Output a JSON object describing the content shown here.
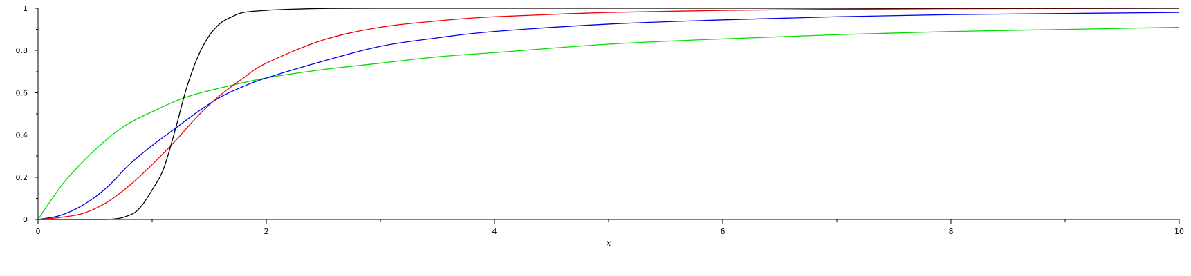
{
  "chart_data": {
    "type": "line",
    "title": "",
    "xlabel": "x",
    "ylabel": "",
    "xlim": [
      0,
      10
    ],
    "ylim": [
      0,
      1
    ],
    "grid": false,
    "x_ticks": [
      0,
      2,
      4,
      6,
      8,
      10
    ],
    "x_ticks_minor": [
      1,
      3,
      5,
      7,
      9
    ],
    "y_ticks": [
      0,
      0.2,
      0.4,
      0.6,
      0.8,
      1
    ],
    "y_tick_labels": [
      "0",
      "0.2",
      "0.4",
      "0.6",
      "0.8",
      "1"
    ],
    "series": [
      {
        "color": "#00dd00",
        "x": [
          0,
          0.1,
          0.25,
          0.5,
          0.75,
          1.0,
          1.25,
          1.5,
          2.0,
          2.5,
          3.0,
          3.5,
          4.0,
          5.0,
          6.0,
          7.0,
          8.0,
          9.0,
          10.0
        ],
        "y": [
          0,
          0.08,
          0.19,
          0.33,
          0.44,
          0.51,
          0.57,
          0.61,
          0.67,
          0.71,
          0.74,
          0.77,
          0.79,
          0.83,
          0.855,
          0.875,
          0.89,
          0.9,
          0.91
        ]
      },
      {
        "color": "#0000ee",
        "x": [
          0,
          0.2,
          0.4,
          0.6,
          0.8,
          1.0,
          1.2,
          1.4,
          1.6,
          1.8,
          2.0,
          2.5,
          3.0,
          3.5,
          4.0,
          5.0,
          6.0,
          7.0,
          8.0,
          9.0,
          10.0
        ],
        "y": [
          0,
          0.02,
          0.07,
          0.15,
          0.26,
          0.35,
          0.43,
          0.51,
          0.58,
          0.63,
          0.67,
          0.75,
          0.82,
          0.86,
          0.89,
          0.925,
          0.945,
          0.96,
          0.97,
          0.975,
          0.98
        ]
      },
      {
        "color": "#ee0000",
        "x": [
          0,
          0.2,
          0.4,
          0.6,
          0.8,
          1.0,
          1.2,
          1.4,
          1.6,
          1.8,
          2.0,
          2.5,
          3.0,
          3.5,
          4.0,
          5.0,
          6.0,
          7.0,
          8.0,
          9.0,
          10.0
        ],
        "y": [
          0,
          0.01,
          0.03,
          0.08,
          0.16,
          0.26,
          0.37,
          0.49,
          0.59,
          0.67,
          0.74,
          0.85,
          0.91,
          0.94,
          0.96,
          0.98,
          0.99,
          0.995,
          0.998,
          0.999,
          1.0
        ]
      },
      {
        "color": "#000000",
        "x": [
          0,
          0.6,
          0.8,
          0.9,
          1.0,
          1.1,
          1.2,
          1.3,
          1.4,
          1.5,
          1.6,
          1.7,
          1.8,
          2.0,
          2.2,
          2.5,
          3.0,
          4.0,
          6.0,
          8.0,
          10.0
        ],
        "y": [
          0,
          0.0,
          0.02,
          0.06,
          0.14,
          0.24,
          0.42,
          0.62,
          0.77,
          0.87,
          0.93,
          0.96,
          0.98,
          0.99,
          0.995,
          0.999,
          1.0,
          1.0,
          1.0,
          1.0,
          1.0
        ]
      }
    ]
  }
}
